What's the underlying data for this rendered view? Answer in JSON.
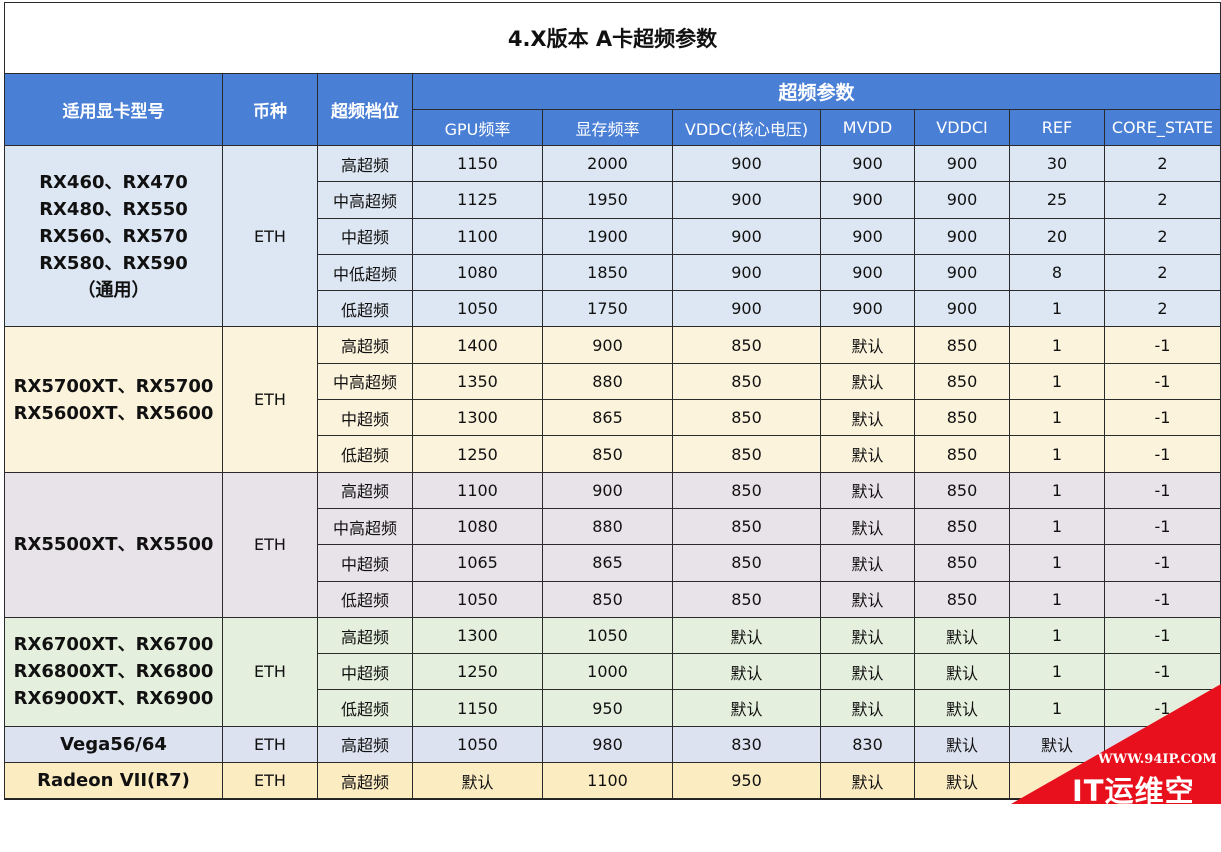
{
  "title": "4.X版本  A卡超频参数",
  "headers": {
    "model": "适用显卡型号",
    "coin": "币种",
    "level": "超频档位",
    "params_group": "超频参数",
    "gpu": "GPU频率",
    "mem": "显存频率",
    "vddc": "VDDC(核心电压)",
    "mvdd": "MVDD",
    "vddci": "VDDCI",
    "ref": "REF",
    "core_state": "CORE_STATE"
  },
  "groups": [
    {
      "models": [
        "RX460、RX470",
        "RX480、RX550",
        "RX560、RX570",
        "RX580、RX590",
        "（通用）"
      ],
      "coin": "ETH",
      "rows": [
        [
          "高超频",
          "1150",
          "2000",
          "900",
          "900",
          "900",
          "30",
          "2"
        ],
        [
          "中高超频",
          "1125",
          "1950",
          "900",
          "900",
          "900",
          "25",
          "2"
        ],
        [
          "中超频",
          "1100",
          "1900",
          "900",
          "900",
          "900",
          "20",
          "2"
        ],
        [
          "中低超频",
          "1080",
          "1850",
          "900",
          "900",
          "900",
          "8",
          "2"
        ],
        [
          "低超频",
          "1050",
          "1750",
          "900",
          "900",
          "900",
          "1",
          "2"
        ]
      ]
    },
    {
      "models": [
        "RX5700XT、RX5700",
        "RX5600XT、RX5600"
      ],
      "coin": "ETH",
      "rows": [
        [
          "高超频",
          "1400",
          "900",
          "850",
          "默认",
          "850",
          "1",
          "-1"
        ],
        [
          "中高超频",
          "1350",
          "880",
          "850",
          "默认",
          "850",
          "1",
          "-1"
        ],
        [
          "中超频",
          "1300",
          "865",
          "850",
          "默认",
          "850",
          "1",
          "-1"
        ],
        [
          "低超频",
          "1250",
          "850",
          "850",
          "默认",
          "850",
          "1",
          "-1"
        ]
      ]
    },
    {
      "models": [
        "RX5500XT、RX5500"
      ],
      "coin": "ETH",
      "rows": [
        [
          "高超频",
          "1100",
          "900",
          "850",
          "默认",
          "850",
          "1",
          "-1"
        ],
        [
          "中高超频",
          "1080",
          "880",
          "850",
          "默认",
          "850",
          "1",
          "-1"
        ],
        [
          "中超频",
          "1065",
          "865",
          "850",
          "默认",
          "850",
          "1",
          "-1"
        ],
        [
          "低超频",
          "1050",
          "850",
          "850",
          "默认",
          "850",
          "1",
          "-1"
        ]
      ]
    },
    {
      "models": [
        "RX6700XT、RX6700",
        "RX6800XT、RX6800",
        "RX6900XT、RX6900"
      ],
      "coin": "ETH",
      "rows": [
        [
          "高超频",
          "1300",
          "1050",
          "默认",
          "默认",
          "默认",
          "1",
          "-1"
        ],
        [
          "中超频",
          "1250",
          "1000",
          "默认",
          "默认",
          "默认",
          "1",
          "-1"
        ],
        [
          "低超频",
          "1150",
          "950",
          "默认",
          "默认",
          "默认",
          "1",
          "-1"
        ]
      ]
    },
    {
      "models": [
        "Vega56/64"
      ],
      "coin": "ETH",
      "rows": [
        [
          "高超频",
          "1050",
          "980",
          "830",
          "830",
          "默认",
          "默认",
          ""
        ]
      ]
    },
    {
      "models": [
        "Radeon VII(R7)"
      ],
      "coin": "ETH",
      "rows": [
        [
          "高超频",
          "默认",
          "1100",
          "950",
          "默认",
          "默认",
          "",
          ""
        ]
      ]
    }
  ],
  "watermark": {
    "url": "WWW.94IP.COM",
    "name": "IT运维空间",
    "color": "#e8101c"
  }
}
